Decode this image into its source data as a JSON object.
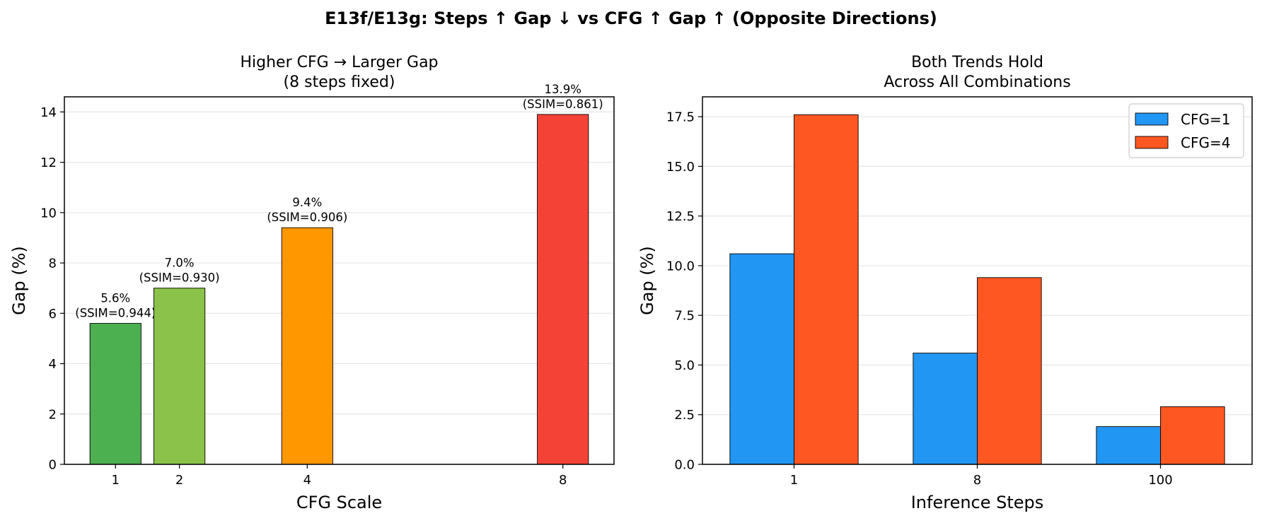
{
  "suptitle": "E13f/E13g: Steps ↑ Gap ↓ vs CFG ↑ Gap ↑ (Opposite Directions)",
  "chart_data": [
    {
      "type": "bar",
      "title_lines": [
        "Higher CFG → Larger Gap",
        "(8 steps fixed)"
      ],
      "xlabel": "CFG Scale",
      "ylabel": "Gap (%)",
      "x_scale": "linear",
      "x": [
        1,
        2,
        4,
        8
      ],
      "xlim": [
        0.2,
        8.8
      ],
      "values": [
        5.6,
        7.0,
        9.4,
        13.9
      ],
      "colors": [
        "#4caf50",
        "#8bc34a",
        "#ff9800",
        "#f44336"
      ],
      "data_labels": [
        [
          "5.6%",
          "(SSIM=0.944)"
        ],
        [
          "7.0%",
          "(SSIM=0.930)"
        ],
        [
          "9.4%",
          "(SSIM=0.906)"
        ],
        [
          "13.9%",
          "(SSIM=0.861)"
        ]
      ],
      "ylim": [
        0,
        14.6
      ],
      "yticks": [
        0,
        2,
        4,
        6,
        8,
        10,
        12,
        14
      ],
      "ytick_labels": [
        "0",
        "2",
        "4",
        "6",
        "8",
        "10",
        "12",
        "14"
      ],
      "grid": "y",
      "legend": "none"
    },
    {
      "type": "bar",
      "title_lines": [
        "Both Trends Hold",
        "Across All Combinations"
      ],
      "xlabel": "Inference Steps",
      "ylabel": "Gap (%)",
      "categories": [
        "1",
        "8",
        "100"
      ],
      "series": [
        {
          "name": "CFG=1",
          "color": "#2196f3",
          "values": [
            10.6,
            5.6,
            1.9
          ]
        },
        {
          "name": "CFG=4",
          "color": "#ff5722",
          "values": [
            17.6,
            9.4,
            2.9
          ]
        }
      ],
      "ylim": [
        0,
        18.5
      ],
      "yticks": [
        0,
        2.5,
        5,
        7.5,
        10,
        12.5,
        15,
        17.5
      ],
      "ytick_labels": [
        "0.0",
        "2.5",
        "5.0",
        "7.5",
        "10.0",
        "12.5",
        "15.0",
        "17.5"
      ],
      "grid": "y",
      "legend": "top-right"
    }
  ]
}
